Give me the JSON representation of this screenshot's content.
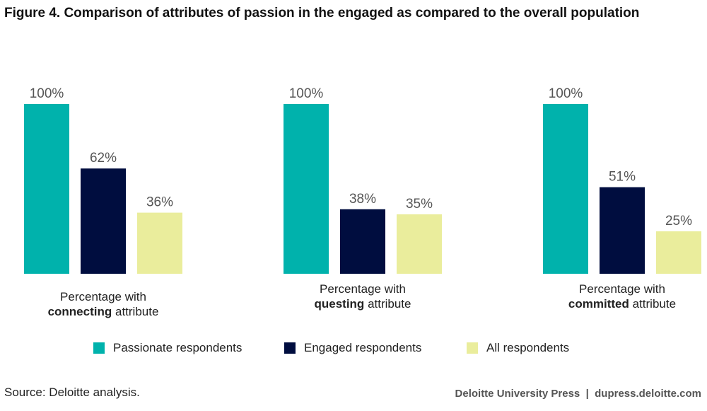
{
  "title": "Figure 4. Comparison of attributes of passion in the engaged as compared to the overall population",
  "chart_data": {
    "type": "bar",
    "categories": [
      {
        "prefix": "Percentage with",
        "keyword": "connecting",
        "suffix": "attribute"
      },
      {
        "prefix": "Percentage with",
        "keyword": "questing",
        "suffix": "attribute"
      },
      {
        "prefix": "Percentage with",
        "keyword": "committed",
        "suffix": "attribute"
      }
    ],
    "series": [
      {
        "name": "Passionate respondents",
        "color": "#00b2ac",
        "values": [
          100,
          100,
          100
        ],
        "labels": [
          "100%",
          "100%",
          "100%"
        ]
      },
      {
        "name": "Engaged respondents",
        "color": "#000d3f",
        "values": [
          62,
          38,
          51
        ],
        "labels": [
          "62%",
          "38%",
          "51%"
        ]
      },
      {
        "name": "All respondents",
        "color": "#eaed9c",
        "values": [
          36,
          35,
          25
        ],
        "labels": [
          "36%",
          "35%",
          "25%"
        ]
      }
    ],
    "ylim": [
      0,
      100
    ],
    "legend_position": "bottom"
  },
  "footer": {
    "source": "Source: Deloitte analysis.",
    "credit": "Deloitte University Press  |  dupress.deloitte.com"
  }
}
